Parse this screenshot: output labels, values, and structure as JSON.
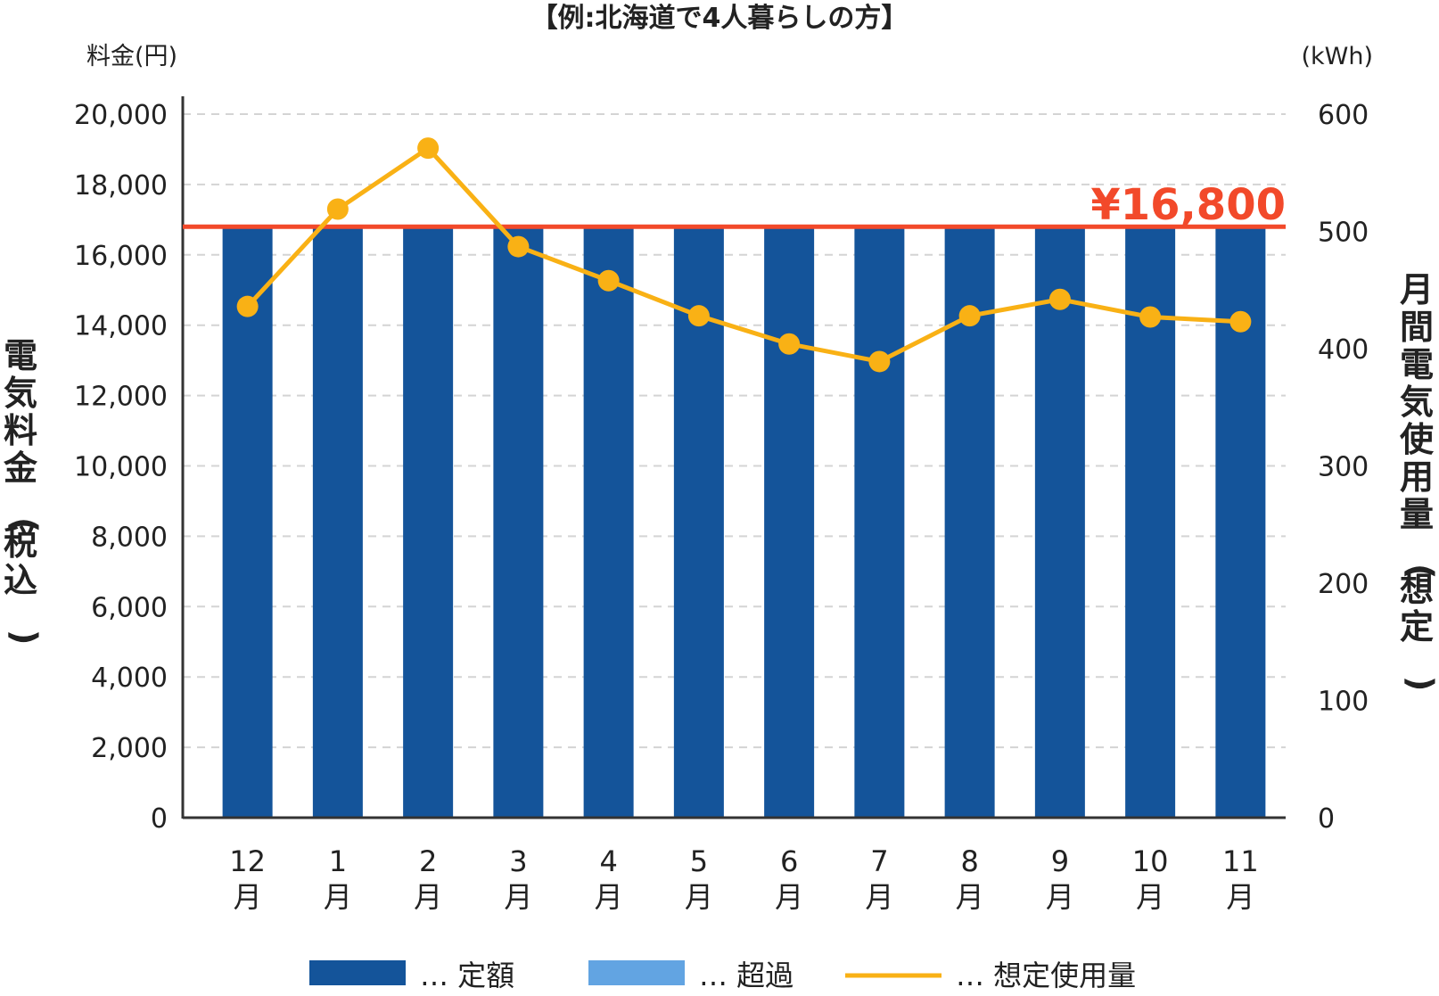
{
  "chart_data": {
    "type": "bar",
    "title": "【例:北海道で4人暮らしの方】",
    "categories": [
      "12\n月",
      "1\n月",
      "2\n月",
      "3\n月",
      "4\n月",
      "5\n月",
      "6\n月",
      "7\n月",
      "8\n月",
      "9\n月",
      "10\n月",
      "11\n月"
    ],
    "left_axis": {
      "unit": "料金(円)",
      "label": "電気料金(税込)",
      "range": [
        0,
        20000
      ],
      "ticks": [
        "0",
        "2,000",
        "4,000",
        "6,000",
        "8,000",
        "10,000",
        "12,000",
        "14,000",
        "16,000",
        "18,000",
        "20,000"
      ]
    },
    "right_axis": {
      "unit": "(kWh)",
      "label": "月間電気使用量(想定)",
      "range": [
        0,
        600
      ],
      "ticks": [
        "0",
        "100",
        "200",
        "300",
        "400",
        "500",
        "600"
      ]
    },
    "grid": true,
    "series": [
      {
        "name": "定額",
        "type": "bar",
        "axis": "left",
        "color": "#14549a",
        "values": [
          16800,
          16800,
          16800,
          16800,
          16800,
          16800,
          16800,
          16800,
          16800,
          16800,
          16800,
          16800
        ]
      },
      {
        "name": "超過",
        "type": "bar",
        "axis": "left",
        "color": "#62a4e2",
        "values": [
          0,
          0,
          0,
          0,
          0,
          0,
          0,
          0,
          0,
          0,
          0,
          0
        ]
      },
      {
        "name": "想定使用量",
        "type": "line",
        "axis": "right",
        "color": "#f9b115",
        "values": [
          436,
          519,
          571,
          487,
          458,
          428,
          404,
          389,
          428,
          442,
          427,
          423
        ]
      }
    ],
    "reference_line": {
      "value": 16800,
      "label": "¥16,800",
      "color": "#f2492a"
    },
    "legend": {
      "position": "bottom",
      "items": [
        {
          "label": "… 定額",
          "color": "#14549a",
          "kind": "bar"
        },
        {
          "label": "… 超過",
          "color": "#62a4e2",
          "kind": "bar"
        },
        {
          "label": "… 想定使用量",
          "color": "#f9b115",
          "kind": "line"
        }
      ]
    }
  }
}
